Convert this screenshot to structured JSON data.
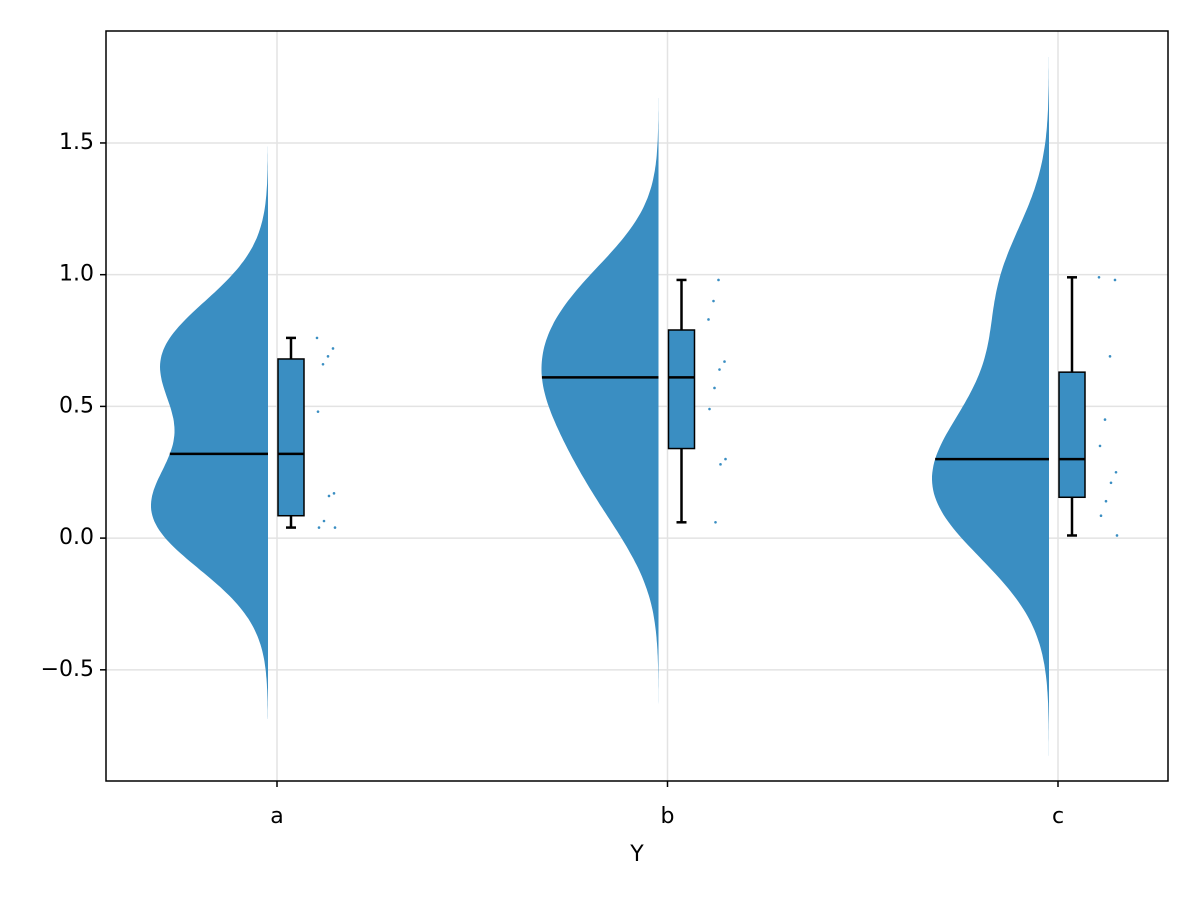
{
  "chart_data": {
    "type": "raincloud",
    "x_label": "Y",
    "categories": [
      "a",
      "b",
      "c"
    ],
    "values": [
      [
        0.76,
        0.72,
        0.69,
        0.66,
        0.48,
        0.17,
        0.16,
        0.065,
        0.04,
        0.04
      ],
      [
        0.98,
        0.9,
        0.83,
        0.67,
        0.64,
        0.57,
        0.49,
        0.3,
        0.28,
        0.06
      ],
      [
        0.99,
        0.98,
        0.69,
        0.45,
        0.35,
        0.25,
        0.21,
        0.14,
        0.085,
        0.01
      ]
    ],
    "boxes": [
      {
        "low": 0.04,
        "q1": 0.085,
        "median": 0.32,
        "q3": 0.68,
        "high": 0.76
      },
      {
        "low": 0.06,
        "q1": 0.34,
        "median": 0.61,
        "q3": 0.79,
        "high": 0.98
      },
      {
        "low": 0.01,
        "q1": 0.155,
        "median": 0.3,
        "q3": 0.63,
        "high": 0.99
      }
    ],
    "color": "#3a8ec2",
    "ylim": [
      -0.922,
      1.925
    ],
    "yticks": [
      {
        "value": -0.5,
        "label": "−0.5"
      },
      {
        "value": 0,
        "label": "0.0"
      },
      0.5,
      {
        "value": 1,
        "label": "1.0"
      },
      1.5
    ],
    "grid": true
  }
}
